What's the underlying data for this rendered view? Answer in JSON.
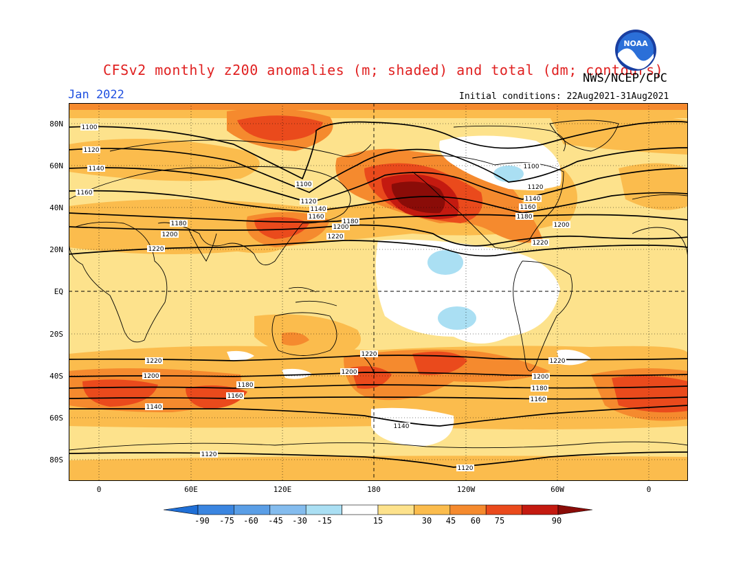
{
  "title": "CFSv2 monthly z200 anomalies (m; shaded) and total (dm; contours)",
  "agency": "NWS/NCEP/CPC",
  "logo_text": "NOAA",
  "month": "Jan 2022",
  "initial_conditions": "Initial conditions: 22Aug2021-31Aug2021",
  "lat_labels": [
    "80N",
    "60N",
    "40N",
    "20N",
    "EQ",
    "20S",
    "40S",
    "60S",
    "80S"
  ],
  "lon_labels": [
    "0",
    "60E",
    "120E",
    "180",
    "120W",
    "60W",
    "0"
  ],
  "colorbar": {
    "labels": [
      "-90",
      "-75",
      "-60",
      "-45",
      "-30",
      "-15",
      "15",
      "30",
      "45",
      "60",
      "75",
      "90"
    ],
    "colors": [
      "#1f6fd6",
      "#3a85e0",
      "#5a9ee6",
      "#84bcee",
      "#aadff3",
      "#ffffff",
      "#fde28c",
      "#fbbc4d",
      "#f58a2e",
      "#ea4a1c",
      "#c41a10",
      "#8a0c08"
    ]
  },
  "contour_labels": [
    "1100",
    "1120",
    "1140",
    "1160",
    "1180",
    "1200",
    "1220"
  ],
  "colors": {
    "title": "#e02020",
    "month": "#2050e0",
    "base_fill": "#fde28c"
  }
}
